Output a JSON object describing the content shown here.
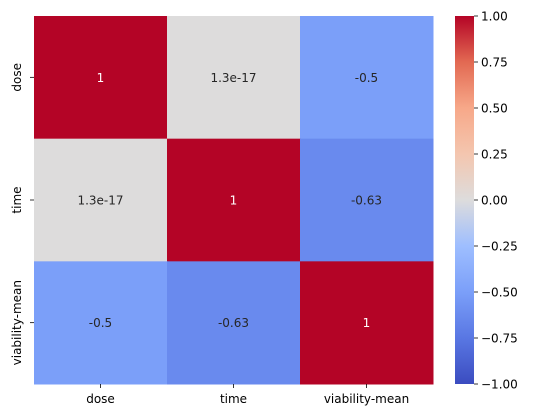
{
  "chart_data": {
    "type": "heatmap",
    "title": "",
    "xlabel": "",
    "ylabel": "",
    "x_categories": [
      "dose",
      "time",
      "viability-mean"
    ],
    "y_categories": [
      "dose",
      "time",
      "viability-mean"
    ],
    "matrix": [
      [
        1.0,
        1.3e-17,
        -0.5
      ],
      [
        1.3e-17,
        1.0,
        -0.63
      ],
      [
        -0.5,
        -0.63,
        1.0
      ]
    ],
    "annotations": [
      [
        "1",
        "1.3e-17",
        "-0.5"
      ],
      [
        "1.3e-17",
        "1",
        "-0.63"
      ],
      [
        "-0.5",
        "-0.63",
        "1"
      ]
    ],
    "colormap": "coolwarm",
    "vmin": -1.0,
    "vmax": 1.0,
    "colorbar": {
      "ticks": [
        1.0,
        0.75,
        0.5,
        0.25,
        0.0,
        -0.25,
        -0.5,
        -0.75,
        -1.0
      ],
      "tick_labels": [
        "1.00",
        "0.75",
        "0.50",
        "0.25",
        "0.00",
        "−0.25",
        "−0.50",
        "−0.75",
        "−1.00"
      ]
    },
    "grid": false,
    "legend": "colorbar-right"
  }
}
